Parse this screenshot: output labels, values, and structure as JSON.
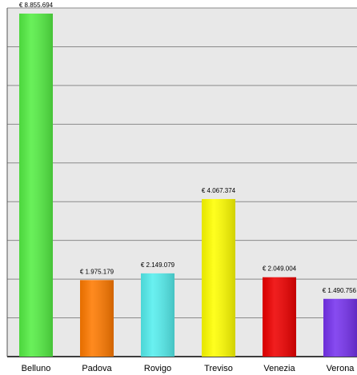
{
  "chart_data": {
    "type": "bar",
    "title": "",
    "xlabel": "",
    "ylabel": "",
    "categories": [
      "Belluno",
      "Padova",
      "Rovigo",
      "Treviso",
      "Venezia",
      "Verona"
    ],
    "values": [
      8855694,
      1975179,
      2149079,
      4067374,
      2049004,
      1490756
    ],
    "value_labels": [
      "€ 8.855.694",
      "€ 1.975.179",
      "€ 2.149.079",
      "€ 4.067.374",
      "€ 2.049.004",
      "€ 1.490.756"
    ],
    "colors": [
      "#55ee44",
      "#ff7a00",
      "#55eeee",
      "#ffff00",
      "#ee0000",
      "#7733ee"
    ],
    "ylim": [
      0,
      9000000
    ],
    "grid": true,
    "background": "#e8e8e8",
    "legend": "none"
  }
}
